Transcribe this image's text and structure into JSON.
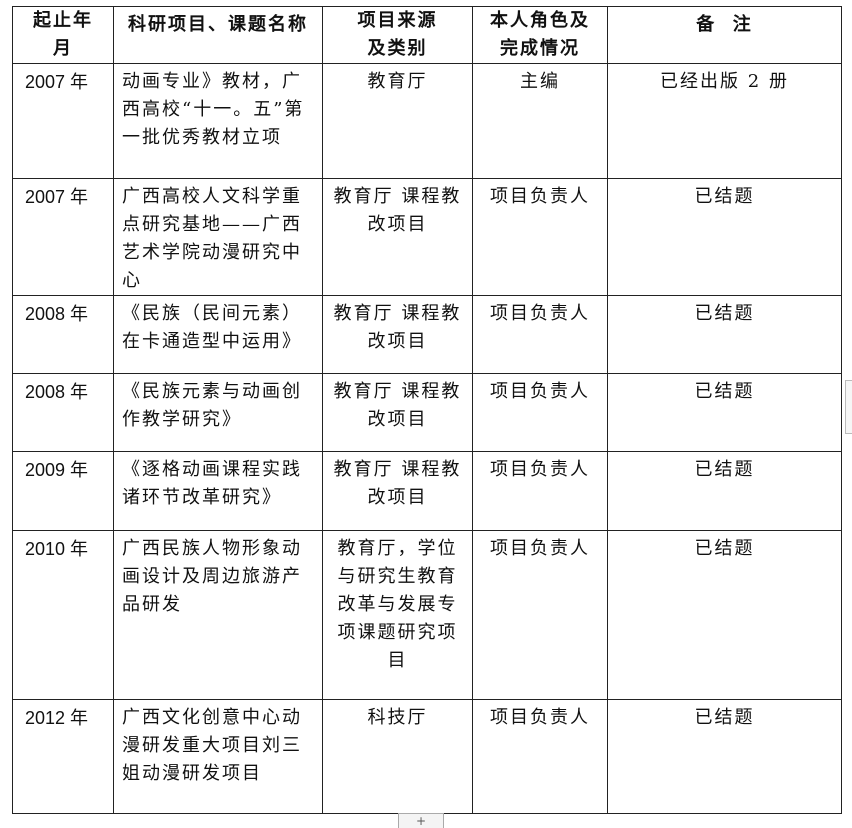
{
  "headers": [
    "起止年月",
    "科研项目、课题名称",
    "项目来源及类别",
    "本人角色及完成情况",
    "备  注"
  ],
  "rows": [
    {
      "year": "2007 年",
      "name": "动画专业》教材，广西高校“十一。五”第一批优秀教材立项",
      "source": "教育厅",
      "role": "主编",
      "note": "已经出版 2 册"
    },
    {
      "year": "2007 年",
      "name": "广西高校人文科学重点研究基地——广西艺术学院动漫研究中心",
      "source": "教育厅 课程教改项目",
      "role": "项目负责人",
      "note": "已结题"
    },
    {
      "year": "2008 年",
      "name": "《民族（民间元素）在卡通造型中运用》",
      "source": "教育厅 课程教改项目",
      "role": "项目负责人",
      "note": "已结题"
    },
    {
      "year": "2008 年",
      "name": "《民族元素与动画创作教学研究》",
      "source": "教育厅 课程教改项目",
      "role": "项目负责人",
      "note": "已结题"
    },
    {
      "year": "2009 年",
      "name": "《逐格动画课程实践诸环节改革研究》",
      "source": "教育厅 课程教改项目",
      "role": "项目负责人",
      "note": "已结题"
    },
    {
      "year": "2010 年",
      "name": "广西民族人物形象动画设计及周边旅游产品研发",
      "source": "教育厅，学位与研究生教育改革与发展专项课题研究项目",
      "role": "项目负责人",
      "note": "已结题"
    },
    {
      "year": "2012 年",
      "name": "广西文化创意中心动漫研发重大项目刘三姐动漫研发项目",
      "source": "科技厅",
      "role": "项目负责人",
      "note": "已结题"
    }
  ],
  "add_button": "+"
}
